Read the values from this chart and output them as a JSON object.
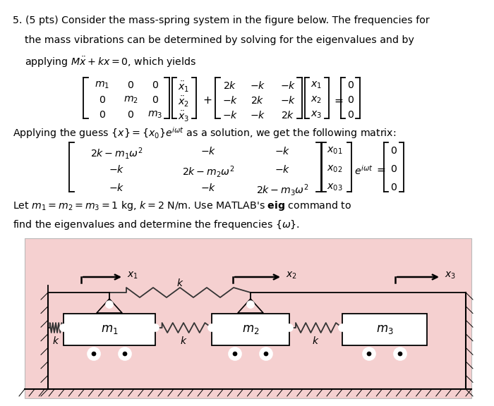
{
  "bg_color": "#ffffff",
  "figure_size": [
    7.0,
    5.76
  ],
  "dpi": 100,
  "diagram_bg": "#f5d0d0",
  "text_color": "#000000",
  "line1": "5. (5 pts) Consider the mass-spring system in the figure below. The frequencies for",
  "line2": "the mass vibrations can be determined by solving for the eigenvalues and by",
  "line3": "applying $M\\ddot{x} + kx = 0$, which yields",
  "line4": "Applying the guess $\\{x\\} = \\{x_0\\}e^{i\\omega t}$ as a solution, we get the following matrix:",
  "line5": "Let $m_1 = m_2 = m_3 = 1$ kg, $k = 2$ N/m. Use MATLAB's \\textbf{eig} command to",
  "line6": "find the eigenvalues and determine the frequencies $\\{\\omega\\}$.",
  "fs_main": 10.2,
  "fs_math": 10.2
}
